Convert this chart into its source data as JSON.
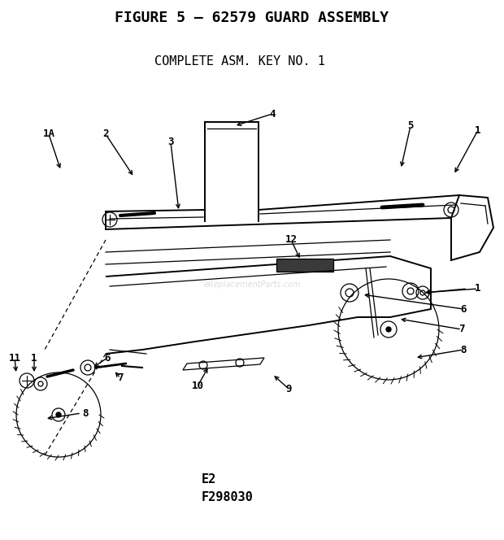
{
  "title": "FIGURE 5 – 62579 GUARD ASSEMBLY",
  "subtitle": "COMPLETE ASM. KEY NO. 1",
  "footer1": "E2",
  "footer2": "F298030",
  "watermark": "eReplacementParts.com",
  "bg_color": "#ffffff",
  "ink_color": "#000000",
  "title_fontsize": 13,
  "subtitle_fontsize": 11,
  "label_fontsize": 9,
  "footer_fontsize": 11,
  "fig_width": 6.2,
  "fig_height": 6.64,
  "dpi": 100
}
